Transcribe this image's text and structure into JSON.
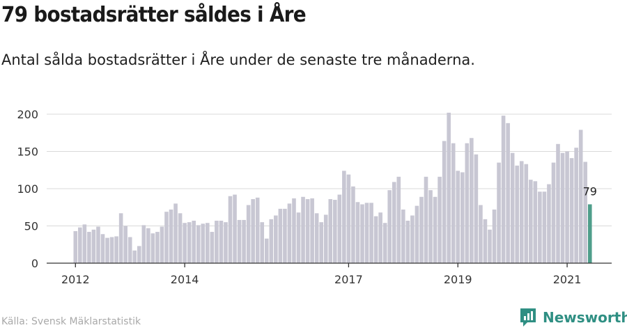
{
  "title": "79 bostadsrätter såldes i Åre",
  "subtitle": "Antal sålda bostadsrätter i Åre under de senaste tre månaderna.",
  "source": "Källa: Svensk Mäklarstatistik",
  "brand": "Newsworthy",
  "colors": {
    "bar": "#c8c7d3",
    "highlight": "#4f9e8b",
    "grid": "#d9d9d9",
    "axis": "#333333",
    "brand": "#2f8f83"
  },
  "chart_data": {
    "type": "bar",
    "x_tick_labels": [
      "2012",
      "2014",
      "2017",
      "2019",
      "2021"
    ],
    "y_ticks": [
      0,
      50,
      100,
      150,
      200
    ],
    "ylim": [
      0,
      210
    ],
    "grid": true,
    "highlight_label": "79",
    "values": [
      43,
      48,
      52,
      42,
      45,
      49,
      39,
      34,
      35,
      36,
      67,
      50,
      35,
      17,
      23,
      51,
      47,
      40,
      42,
      49,
      69,
      72,
      80,
      67,
      54,
      55,
      57,
      51,
      53,
      54,
      42,
      57,
      57,
      55,
      90,
      92,
      58,
      58,
      78,
      86,
      88,
      55,
      33,
      59,
      64,
      73,
      73,
      80,
      87,
      68,
      89,
      86,
      87,
      67,
      55,
      65,
      86,
      85,
      92,
      124,
      119,
      103,
      82,
      79,
      81,
      81,
      63,
      68,
      54,
      98,
      109,
      116,
      72,
      57,
      64,
      77,
      89,
      116,
      98,
      89,
      116,
      164,
      202,
      161,
      124,
      122,
      161,
      168,
      146,
      78,
      59,
      45,
      72,
      135,
      198,
      188,
      148,
      131,
      137,
      133,
      112,
      110,
      96,
      96,
      106,
      135,
      160,
      148,
      150,
      141,
      155,
      179,
      136,
      79
    ]
  }
}
